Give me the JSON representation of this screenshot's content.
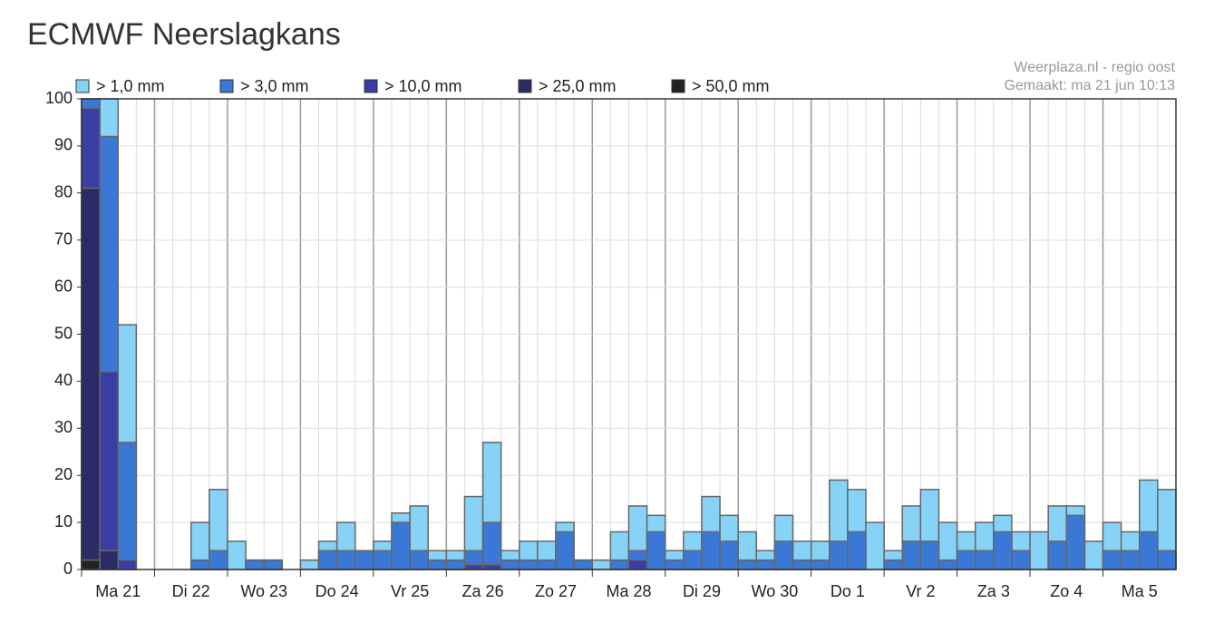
{
  "chart_data": {
    "type": "bar",
    "title": "ECMWF Neerslagkans",
    "source": "Weerplaza.nl - regio oost",
    "created": "Gemaakt: ma 21 jun 10:13",
    "categories": [
      null,
      "Ma 21",
      null,
      null,
      null,
      "Di 22",
      null,
      null,
      null,
      "Wo 23",
      null,
      null,
      null,
      "Do 24",
      null,
      null,
      null,
      "Vr 25",
      null,
      null,
      null,
      "Za 26",
      null,
      null,
      null,
      "Zo 27",
      null,
      null,
      null,
      "Ma 28",
      null,
      null,
      null,
      "Di 29",
      null,
      null,
      null,
      "Wo 30",
      null,
      null,
      null,
      "Do 1",
      null,
      null,
      null,
      "Vr 2",
      null,
      null,
      null,
      "Za 3",
      null,
      null,
      null,
      "Zo 4",
      null,
      null,
      null,
      "Ma 5",
      null,
      null
    ],
    "series": [
      {
        "name": "> 1,0 mm",
        "color": "#87d3f8",
        "values": [
          100,
          100,
          52,
          0,
          0,
          0,
          10,
          17,
          6,
          2,
          2,
          0,
          2,
          6,
          10,
          4,
          6,
          12,
          13.5,
          4,
          4,
          15.5,
          27,
          4,
          6,
          6,
          10,
          2,
          2,
          8,
          13.5,
          11.5,
          4,
          8,
          15.5,
          11.5,
          8,
          4,
          11.5,
          6,
          6,
          19,
          17,
          10,
          4,
          13.5,
          17,
          10,
          8,
          10,
          11.5,
          8,
          8,
          13.5,
          13.5,
          6,
          10,
          8,
          19,
          17
        ]
      },
      {
        "name": "> 3,0 mm",
        "color": "#3b78d6",
        "values": [
          100,
          92,
          27,
          0,
          0,
          0,
          2,
          4,
          0,
          2,
          2,
          0,
          0,
          4,
          4,
          4,
          4,
          10,
          4,
          2,
          2,
          4,
          10,
          2,
          2,
          2,
          8,
          2,
          0,
          2,
          4,
          8,
          2,
          4,
          8,
          6,
          2,
          2,
          6,
          2,
          2,
          6,
          8,
          0,
          2,
          6,
          6,
          2,
          4,
          4,
          8,
          4,
          0,
          6,
          11.5,
          0,
          4,
          4,
          8,
          4
        ]
      },
      {
        "name": "> 10,0 mm",
        "color": "#3a3fa8",
        "values": [
          98,
          42,
          2,
          0,
          0,
          0,
          0,
          0,
          0,
          0,
          0,
          0,
          0,
          0,
          0,
          0,
          0,
          0,
          0,
          0,
          0,
          1,
          1,
          0,
          0,
          0,
          0,
          0,
          0,
          0,
          2,
          0,
          0,
          0,
          0,
          0,
          0,
          0,
          0,
          0,
          0,
          0,
          0,
          0,
          0,
          0,
          0,
          0,
          0,
          0,
          0,
          0,
          0,
          0,
          0,
          0,
          0,
          0,
          0,
          0
        ]
      },
      {
        "name": "> 25,0 mm",
        "color": "#2b2c66",
        "values": [
          81,
          4,
          0,
          0,
          0,
          0,
          0,
          0,
          0,
          0,
          0,
          0,
          0,
          0,
          0,
          0,
          0,
          0,
          0,
          0,
          0,
          0,
          0,
          0,
          0,
          0,
          0,
          0,
          0,
          0,
          0,
          0,
          0,
          0,
          0,
          0,
          0,
          0,
          0,
          0,
          0,
          0,
          0,
          0,
          0,
          0,
          0,
          0,
          0,
          0,
          0,
          0,
          0,
          0,
          0,
          0,
          0,
          0,
          0,
          0
        ]
      },
      {
        "name": "> 50,0 mm",
        "color": "#222222",
        "values": [
          2,
          0,
          0,
          0,
          0,
          0,
          0,
          0,
          0,
          0,
          0,
          0,
          0,
          0,
          0,
          0,
          0,
          0,
          0,
          0,
          0,
          0,
          0,
          0,
          0,
          0,
          0,
          0,
          0,
          0,
          0,
          0,
          0,
          0,
          0,
          0,
          0,
          0,
          0,
          0,
          0,
          0,
          0,
          0,
          0,
          0,
          0,
          0,
          0,
          0,
          0,
          0,
          0,
          0,
          0,
          0,
          0,
          0,
          0,
          0
        ]
      }
    ],
    "ylim": [
      0,
      100
    ],
    "yticks": [
      0,
      10,
      20,
      30,
      40,
      50,
      60,
      70,
      80,
      90,
      100
    ],
    "grid": true
  }
}
